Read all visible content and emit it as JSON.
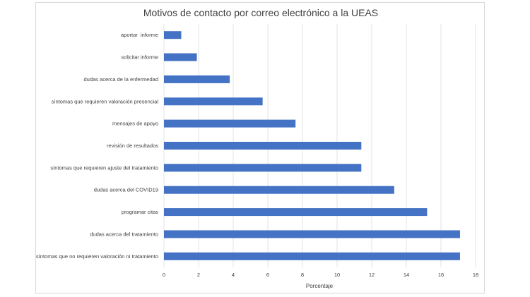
{
  "chart_data": {
    "type": "bar",
    "orientation": "horizontal",
    "title": "Motivos de contacto por correo electrónico a la UEAS",
    "xlabel": "Porcentaje",
    "ylabel": "",
    "xlim": [
      0,
      18
    ],
    "xticks": [
      "0",
      "2",
      "4",
      "6",
      "8",
      "10",
      "12",
      "14",
      "16",
      "18"
    ],
    "grid": true,
    "legend": "none",
    "bar_color": "#4472c4",
    "categories": [
      "aportar  informe",
      "solicitar informe",
      "dudas acerca de la enfermedad",
      "síntomas que requieren valoración presencial",
      "mensajes de apoyo",
      "revisión de resultados",
      "síntomas que requieren ajuste del tratamiento",
      "dudas acerca del COVID19",
      "programar citas",
      "dudas acerca del tratamiento",
      "síntomas que no requieren valoración ni tratamiento"
    ],
    "values": [
      1.0,
      1.9,
      3.8,
      5.7,
      7.6,
      11.4,
      11.4,
      13.3,
      15.2,
      17.1,
      17.1
    ]
  }
}
